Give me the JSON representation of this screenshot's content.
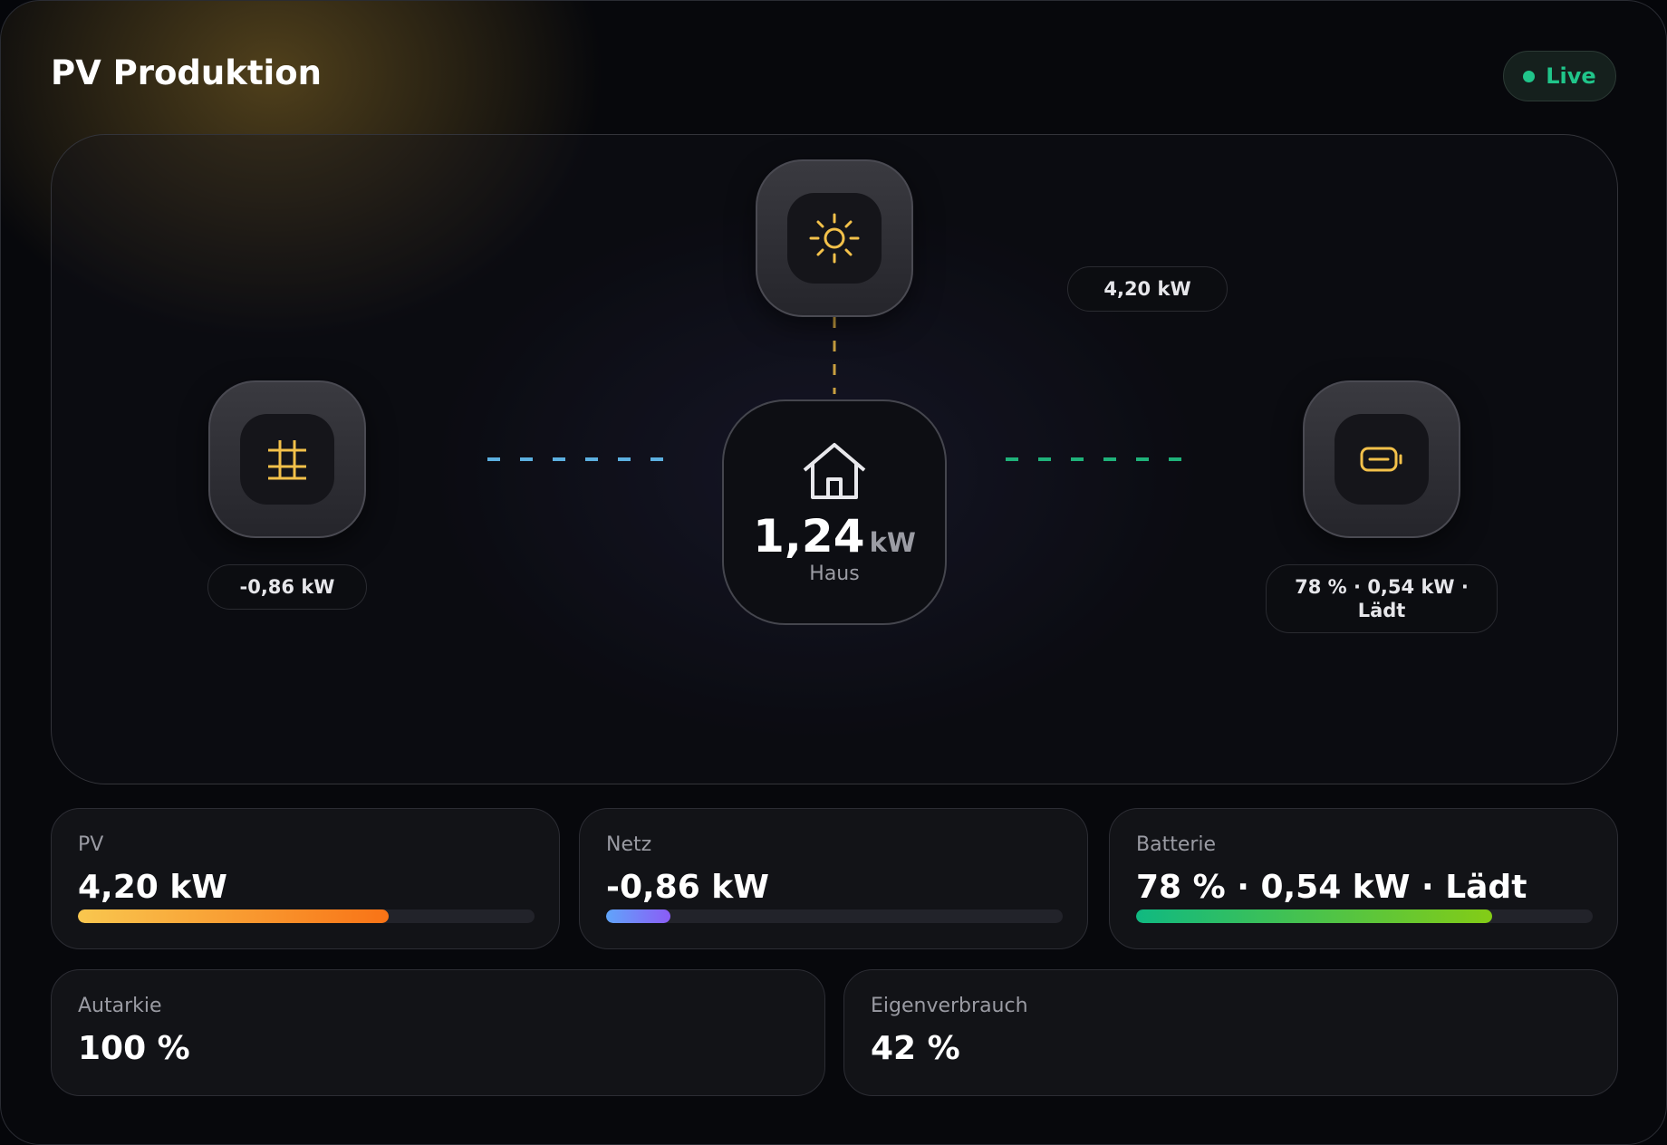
{
  "header": {
    "title": "PV Produktion",
    "status": "Live"
  },
  "flow": {
    "pv": {
      "label": "4,20 kW"
    },
    "grid": {
      "label": "-0,86 kW"
    },
    "house": {
      "value": "1,24",
      "unit": "kW",
      "label": "Haus"
    },
    "battery": {
      "label": "78 % · 0,54 kW · Lädt"
    }
  },
  "stats": [
    {
      "label": "PV",
      "value": "4,20 kW",
      "fill": 68
    },
    {
      "label": "Netz",
      "value": "-0,86 kW",
      "fill": 14
    },
    {
      "label": "Batterie",
      "value": "78 % · 0,54 kW · Lädt",
      "fill": 78
    }
  ],
  "summary": [
    {
      "label": "Autarkie",
      "value": "100 %"
    },
    {
      "label": "Eigenverbrauch",
      "value": "42 %"
    }
  ]
}
